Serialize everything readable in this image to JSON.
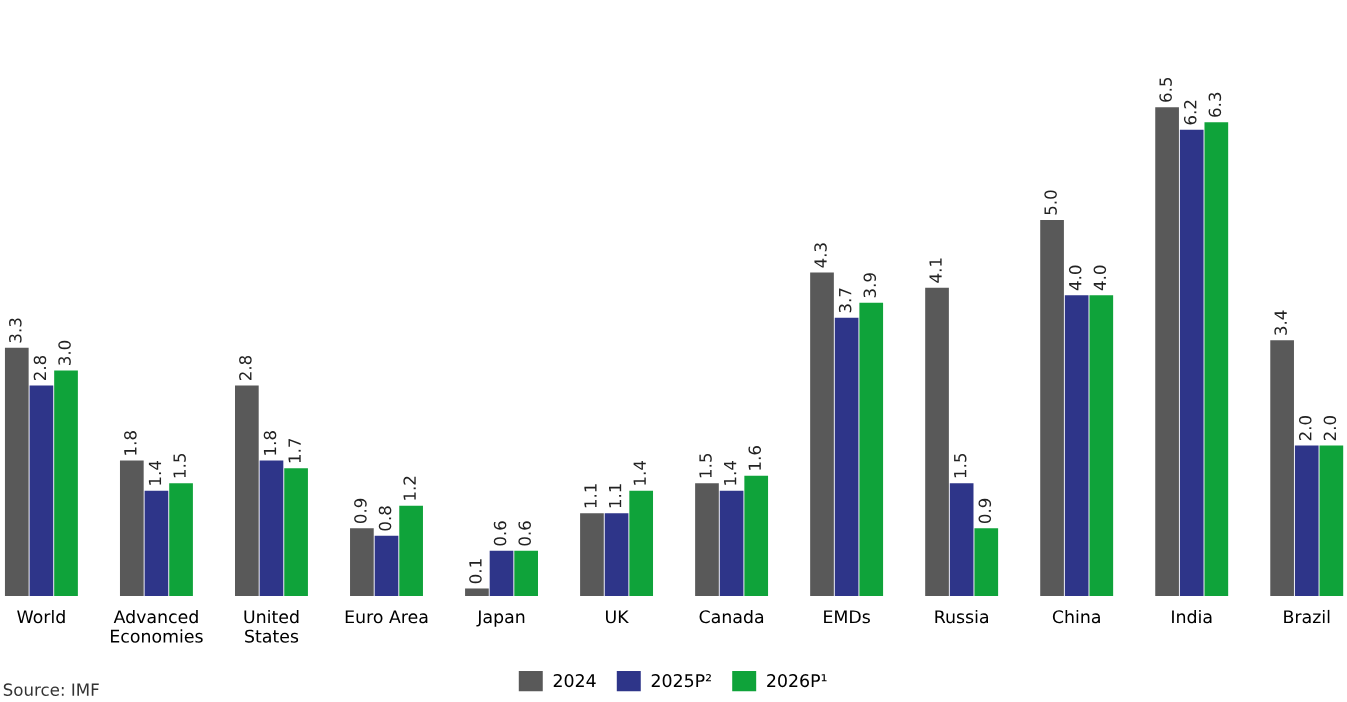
{
  "chart_data": {
    "type": "bar",
    "categories": [
      "World",
      "Advanced\nEconomies",
      "United\nStates",
      "Euro Area",
      "Japan",
      "UK",
      "Canada",
      "EMDs",
      "Russia",
      "China",
      "India",
      "Brazil"
    ],
    "series": [
      {
        "name": "2024",
        "color": "#595959",
        "values": [
          3.3,
          1.8,
          2.8,
          0.9,
          0.1,
          1.1,
          1.5,
          4.3,
          4.1,
          5.0,
          6.5,
          3.4
        ],
        "value_labels": [
          "3.3",
          "1.8",
          "2.8",
          "0.9",
          "0.1",
          "1.1",
          "1.5",
          "4.3",
          "4.1",
          "5.0",
          "6.5",
          "3.4"
        ]
      },
      {
        "name": "2025P²",
        "color": "#2e3589",
        "values": [
          2.8,
          1.4,
          1.8,
          0.8,
          0.6,
          1.1,
          1.4,
          3.7,
          1.5,
          4.0,
          6.2,
          2.0
        ],
        "value_labels": [
          "2.8",
          "1.4",
          "1.8",
          "0.8",
          "0.6",
          "1.1",
          "1.4",
          "3.7",
          "1.5",
          "4.0",
          "6.2",
          "2.0"
        ]
      },
      {
        "name": "2026P¹",
        "color": "#0fa33a",
        "values": [
          3.0,
          1.5,
          1.7,
          1.2,
          0.6,
          1.4,
          1.6,
          3.9,
          0.9,
          4.0,
          6.3,
          2.0
        ],
        "value_labels": [
          "3.0",
          "1.5",
          "1.7",
          "1.2",
          "0.6",
          "1.4",
          "1.6",
          "3.9",
          "0.9",
          "4.0",
          "6.3",
          "2.0"
        ]
      }
    ],
    "legend": "bottom",
    "grid": false,
    "tick_labels": "x",
    "annotations": [
      "Source: IMF"
    ]
  }
}
